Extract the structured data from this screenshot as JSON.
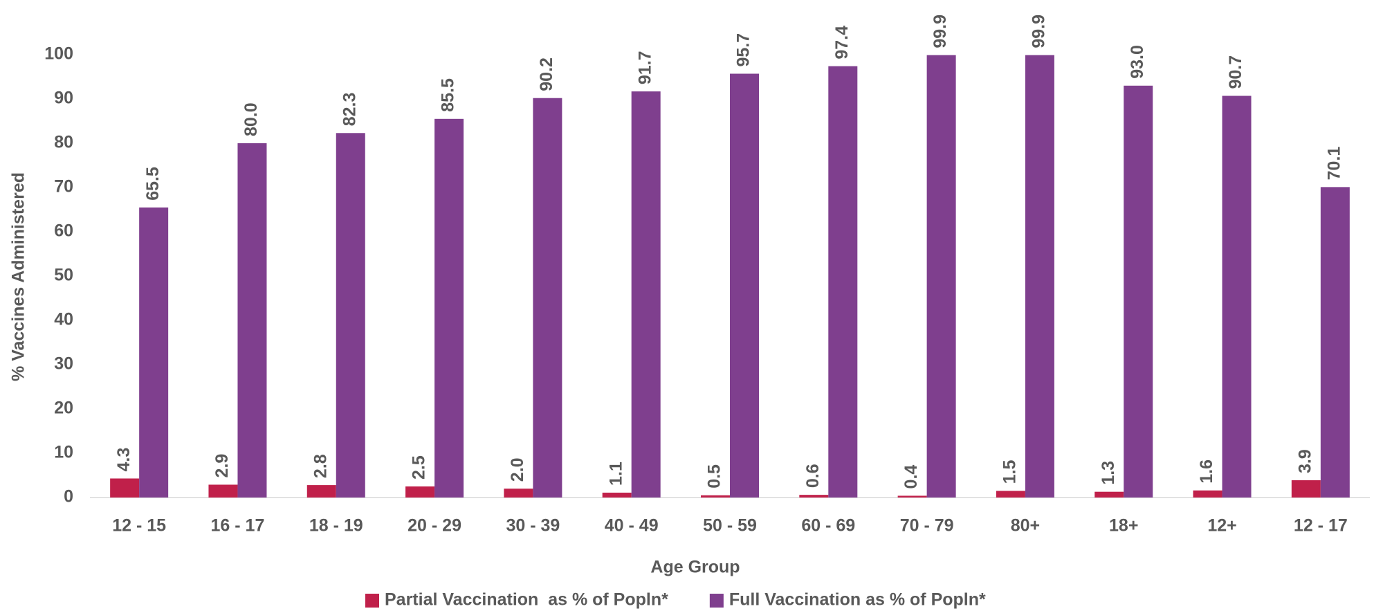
{
  "chart_data": {
    "type": "bar",
    "x_label": "Age Group",
    "y_label": "% Vaccines Administered",
    "categories": [
      "12 - 15",
      "16 - 17",
      "18 - 19",
      "20 - 29",
      "30 - 39",
      "40 - 49",
      "50 - 59",
      "60 - 69",
      "70 - 79",
      "80+",
      "18+",
      "12+",
      "12 - 17"
    ],
    "series": [
      {
        "name": "Partial Vaccination  as % of Popln*",
        "color": "#c0204a",
        "values": [
          4.3,
          2.9,
          2.8,
          2.5,
          2.0,
          1.1,
          0.5,
          0.6,
          0.4,
          1.5,
          1.3,
          1.6,
          3.9
        ],
        "value_labels": [
          "4.3",
          "2.9",
          "2.8",
          "2.5",
          "2.0",
          "1.1",
          "0.5",
          "0.6",
          "0.4",
          "1.5",
          "1.3",
          "1.6",
          "3.9"
        ]
      },
      {
        "name": "Full Vaccination as % of Popln*",
        "color": "#7f3f8e",
        "values": [
          65.5,
          80.0,
          82.3,
          85.5,
          90.2,
          91.7,
          95.7,
          97.4,
          99.9,
          99.9,
          93.0,
          90.7,
          70.1
        ],
        "value_labels": [
          "65.5",
          "80.0",
          "82.3",
          "85.5",
          "90.2",
          "91.7",
          "95.7",
          "97.4",
          "99.9",
          "99.9",
          "93.0",
          "90.7",
          "70.1"
        ]
      }
    ],
    "ylim": [
      0,
      100
    ],
    "yticks": [
      0,
      10,
      20,
      30,
      40,
      50,
      60,
      70,
      80,
      90,
      100
    ],
    "grid": false,
    "legend": "bottom"
  }
}
